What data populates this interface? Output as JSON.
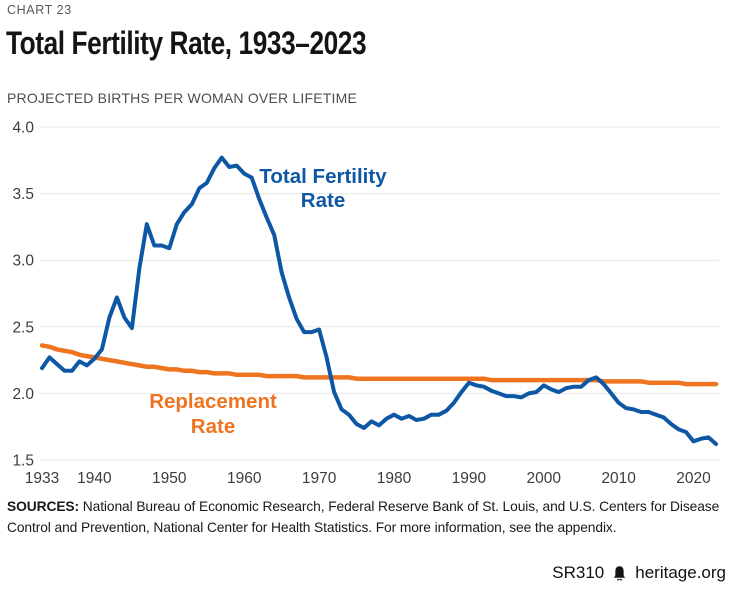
{
  "header": {
    "chart_label": "CHART 23",
    "title": "Total Fertility Rate, 1933–2023",
    "subtitle": "PROJECTED BIRTHS PER WOMAN OVER LIFETIME"
  },
  "chart_data": {
    "type": "line",
    "title": "Total Fertility Rate, 1933–2023",
    "subtitle": "PROJECTED BIRTHS PER WOMAN OVER LIFETIME",
    "grid": "horizontal",
    "legend_position": "inline-labels",
    "ylim": [
      1.5,
      4.0
    ],
    "yticks": [
      4.0,
      3.5,
      3.0,
      2.5,
      2.0,
      1.5
    ],
    "ytick_labels": [
      "4.0",
      "3.5",
      "3.0",
      "2.5",
      "2.0",
      "1.5"
    ],
    "xticks": [
      1933,
      1940,
      1950,
      1960,
      1970,
      1980,
      1990,
      2000,
      2010,
      2020
    ],
    "x": [
      1933,
      1934,
      1935,
      1936,
      1937,
      1938,
      1939,
      1940,
      1941,
      1942,
      1943,
      1944,
      1945,
      1946,
      1947,
      1948,
      1949,
      1950,
      1951,
      1952,
      1953,
      1954,
      1955,
      1956,
      1957,
      1958,
      1959,
      1960,
      1961,
      1962,
      1963,
      1964,
      1965,
      1966,
      1967,
      1968,
      1969,
      1970,
      1971,
      1972,
      1973,
      1974,
      1975,
      1976,
      1977,
      1978,
      1979,
      1980,
      1981,
      1982,
      1983,
      1984,
      1985,
      1986,
      1987,
      1988,
      1989,
      1990,
      1991,
      1992,
      1993,
      1994,
      1995,
      1996,
      1997,
      1998,
      1999,
      2000,
      2001,
      2002,
      2003,
      2004,
      2005,
      2006,
      2007,
      2008,
      2009,
      2010,
      2011,
      2012,
      2013,
      2014,
      2015,
      2016,
      2017,
      2018,
      2019,
      2020,
      2021,
      2022,
      2023
    ],
    "series": [
      {
        "name": "Total Fertility Rate",
        "label_lines": [
          "Total Fertility",
          "Rate"
        ],
        "color": "#0e57a5",
        "values": [
          2.19,
          2.27,
          2.22,
          2.17,
          2.17,
          2.24,
          2.21,
          2.26,
          2.33,
          2.57,
          2.72,
          2.57,
          2.49,
          2.94,
          3.27,
          3.11,
          3.11,
          3.09,
          3.27,
          3.36,
          3.42,
          3.54,
          3.58,
          3.69,
          3.77,
          3.7,
          3.71,
          3.65,
          3.62,
          3.46,
          3.32,
          3.19,
          2.91,
          2.72,
          2.56,
          2.46,
          2.46,
          2.48,
          2.27,
          2.01,
          1.88,
          1.84,
          1.77,
          1.74,
          1.79,
          1.76,
          1.81,
          1.84,
          1.81,
          1.83,
          1.8,
          1.81,
          1.84,
          1.84,
          1.87,
          1.93,
          2.01,
          2.08,
          2.06,
          2.05,
          2.02,
          2.0,
          1.98,
          1.98,
          1.97,
          2.0,
          2.01,
          2.06,
          2.03,
          2.01,
          2.04,
          2.05,
          2.05,
          2.1,
          2.12,
          2.07,
          2.0,
          1.93,
          1.89,
          1.88,
          1.86,
          1.86,
          1.84,
          1.82,
          1.77,
          1.73,
          1.71,
          1.64,
          1.66,
          1.67,
          1.62
        ]
      },
      {
        "name": "Replacement Rate",
        "label_lines": [
          "Replacement",
          "Rate"
        ],
        "color": "#ee7420",
        "values": [
          2.36,
          2.35,
          2.33,
          2.32,
          2.31,
          2.29,
          2.28,
          2.27,
          2.26,
          2.25,
          2.24,
          2.23,
          2.22,
          2.21,
          2.2,
          2.2,
          2.19,
          2.18,
          2.18,
          2.17,
          2.17,
          2.16,
          2.16,
          2.15,
          2.15,
          2.15,
          2.14,
          2.14,
          2.14,
          2.14,
          2.13,
          2.13,
          2.13,
          2.13,
          2.13,
          2.12,
          2.12,
          2.12,
          2.12,
          2.12,
          2.12,
          2.12,
          2.11,
          2.11,
          2.11,
          2.11,
          2.11,
          2.11,
          2.11,
          2.11,
          2.11,
          2.11,
          2.11,
          2.11,
          2.11,
          2.11,
          2.11,
          2.11,
          2.11,
          2.11,
          2.1,
          2.1,
          2.1,
          2.1,
          2.1,
          2.1,
          2.1,
          2.1,
          2.1,
          2.1,
          2.1,
          2.1,
          2.1,
          2.1,
          2.1,
          2.09,
          2.09,
          2.09,
          2.09,
          2.09,
          2.09,
          2.08,
          2.08,
          2.08,
          2.08,
          2.08,
          2.07,
          2.07,
          2.07,
          2.07,
          2.07
        ]
      }
    ]
  },
  "sources": {
    "label": "SOURCES:",
    "text": " National Bureau of Economic Research, Federal Reserve Bank of St. Louis, and U.S. Centers for Disease Control and Prevention, National Center for Health Statistics. For more information, see the appendix."
  },
  "footer": {
    "report_id": "SR310",
    "site": "heritage.org",
    "logo_icon": "liberty-bell-icon"
  }
}
